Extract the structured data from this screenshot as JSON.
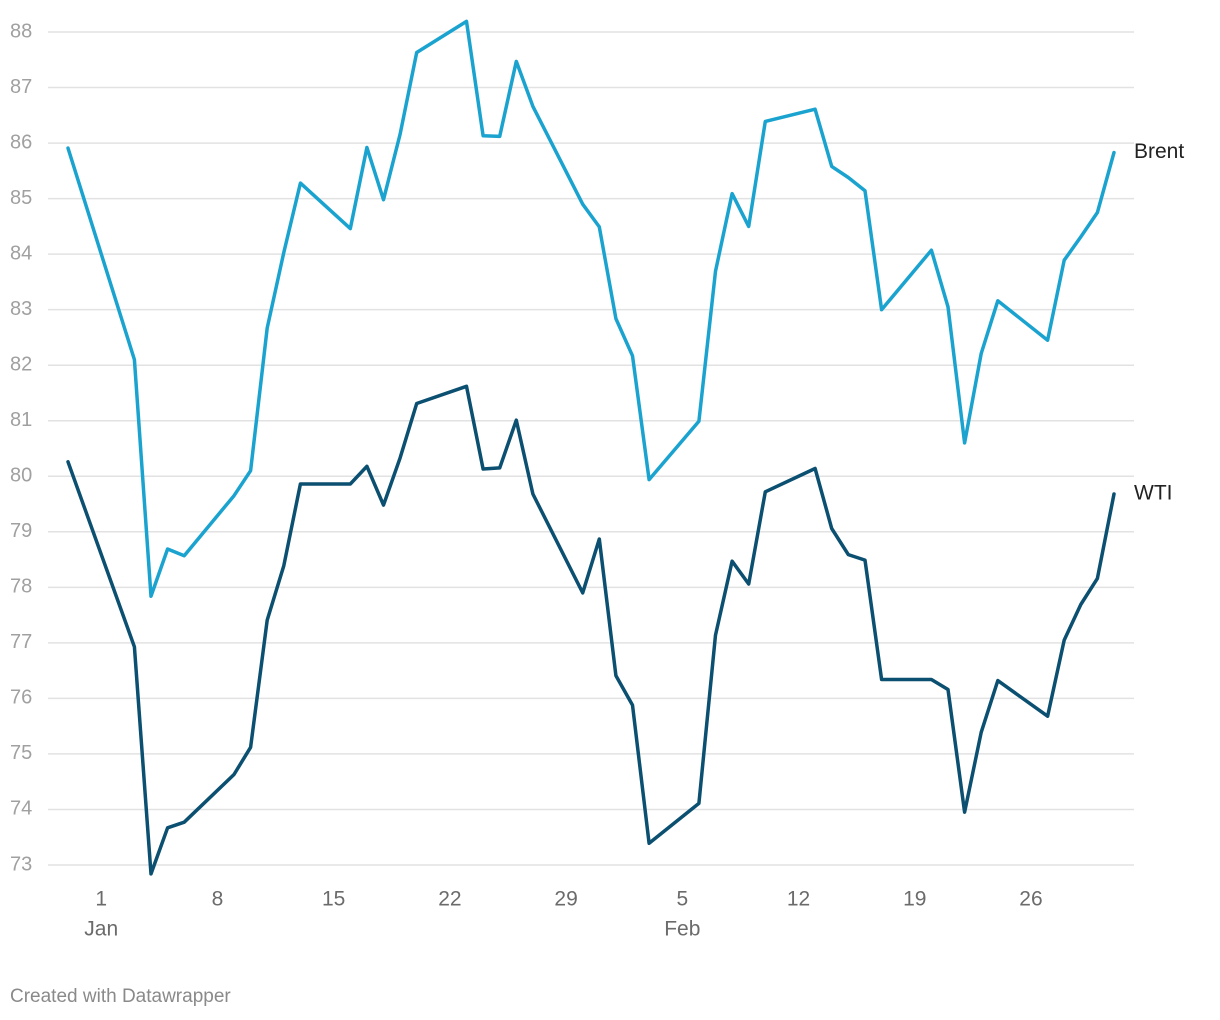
{
  "chart_data": {
    "type": "line",
    "x": [
      "12-30",
      "01-03",
      "01-04",
      "01-05",
      "01-06",
      "01-09",
      "01-10",
      "01-11",
      "01-12",
      "01-13",
      "01-16",
      "01-17",
      "01-18",
      "01-19",
      "01-20",
      "01-23",
      "01-24",
      "01-25",
      "01-26",
      "01-27",
      "01-30",
      "01-31",
      "02-01",
      "02-02",
      "02-03",
      "02-06",
      "02-07",
      "02-08",
      "02-09",
      "02-10",
      "02-13",
      "02-14",
      "02-15",
      "02-16",
      "02-17",
      "02-20",
      "02-21",
      "02-22",
      "02-23",
      "02-24",
      "02-27",
      "02-28",
      "03-01",
      "03-02",
      "03-03"
    ],
    "series": [
      {
        "name": "Brent",
        "color": "#1ba3d0",
        "values": [
          85.91,
          82.1,
          77.84,
          78.69,
          78.57,
          79.65,
          80.1,
          82.67,
          84.03,
          85.28,
          84.46,
          85.92,
          84.98,
          86.16,
          87.63,
          88.19,
          86.13,
          86.12,
          87.47,
          86.66,
          84.9,
          84.49,
          82.84,
          82.17,
          79.94,
          80.99,
          83.69,
          85.09,
          84.5,
          86.39,
          86.61,
          85.58,
          85.38,
          85.14,
          83.0,
          84.07,
          83.05,
          80.6,
          82.21,
          83.16,
          82.45,
          83.89,
          84.31,
          84.75,
          85.83
        ]
      },
      {
        "name": "WTI",
        "color": "#0b4f71",
        "values": [
          80.26,
          76.93,
          72.84,
          73.67,
          73.77,
          74.63,
          75.12,
          77.41,
          78.39,
          79.86,
          79.86,
          80.18,
          79.48,
          80.33,
          81.31,
          81.62,
          80.13,
          80.15,
          81.01,
          79.68,
          77.9,
          78.87,
          76.41,
          75.88,
          73.39,
          74.11,
          77.14,
          78.47,
          78.06,
          79.72,
          80.14,
          79.06,
          78.59,
          78.49,
          76.34,
          76.34,
          76.16,
          73.95,
          75.39,
          76.32,
          75.68,
          77.05,
          77.69,
          78.16,
          79.68
        ]
      }
    ],
    "xlim": [
      "12-30",
      "03-03"
    ],
    "xticks": [
      {
        "value": "01-01",
        "label": "1"
      },
      {
        "value": "01-08",
        "label": "8"
      },
      {
        "value": "01-15",
        "label": "15"
      },
      {
        "value": "01-22",
        "label": "22"
      },
      {
        "value": "01-29",
        "label": "29"
      },
      {
        "value": "02-05",
        "label": "5"
      },
      {
        "value": "02-12",
        "label": "12"
      },
      {
        "value": "02-19",
        "label": "19"
      },
      {
        "value": "02-26",
        "label": "26"
      }
    ],
    "month_labels": [
      {
        "value": "01-01",
        "label": "Jan"
      },
      {
        "value": "02-05",
        "label": "Feb"
      }
    ],
    "ylim": [
      73,
      88
    ],
    "yticks": [
      73,
      74,
      75,
      76,
      77,
      78,
      79,
      80,
      81,
      82,
      83,
      84,
      85,
      86,
      87,
      88
    ],
    "grid": true,
    "footer": "Created with Datawrapper"
  }
}
